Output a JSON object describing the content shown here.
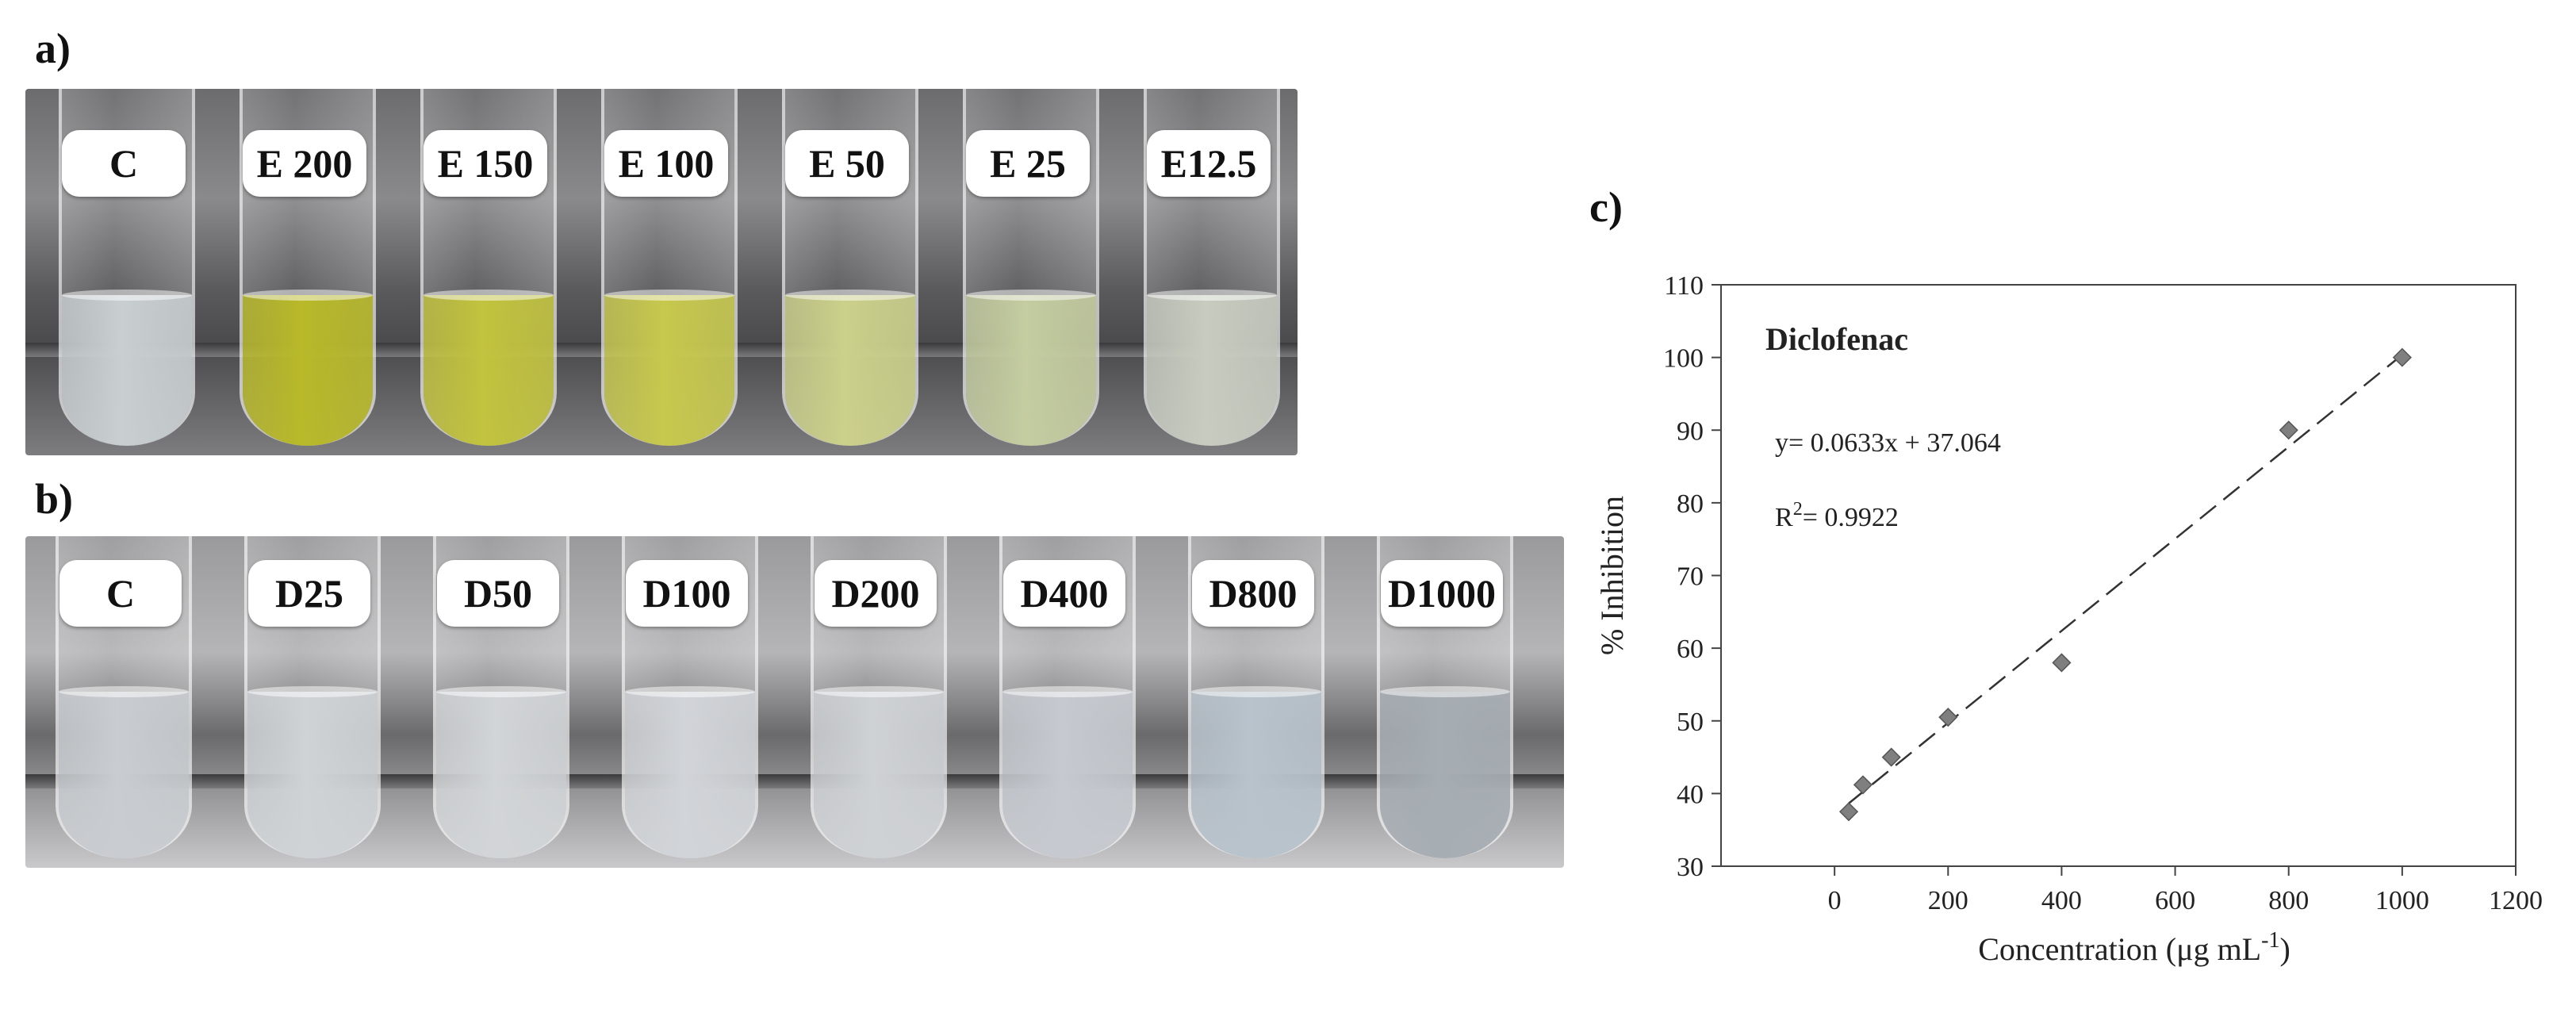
{
  "panels": {
    "a": "a)",
    "b": "b)",
    "c": "c)"
  },
  "photo_a": {
    "labels": [
      "C",
      "E 200",
      "E 150",
      "E 100",
      "E 50",
      "E 25",
      "E12.5"
    ],
    "liquid_colors": [
      "#c9cfd1",
      "#b9b92a",
      "#c2c33e",
      "#c7c84e",
      "#cbd08a",
      "#c4cca0",
      "#c8ccc0"
    ]
  },
  "photo_b": {
    "labels": [
      "C",
      "D25",
      "D50",
      "D100",
      "D200",
      "D400",
      "D800",
      "D1000"
    ],
    "liquid_colors": [
      "#c9cdd1",
      "#cfd3d6",
      "#d2d5d7",
      "#d1d4d8",
      "#cfd2d5",
      "#c6cad0",
      "#b8c3cc",
      "#a6adb3"
    ]
  },
  "chart_data": {
    "type": "scatter",
    "title": "Diclofenac",
    "equation": "y= 0.0633x + 37.064",
    "r2_label": "R",
    "r2_sup": "2",
    "r2_value": "= 0.9922",
    "xlabel_main": "Concentration (μg mL",
    "xlabel_sup": "-1",
    "xlabel_end": ")",
    "ylabel": "% Inhibition",
    "xlim": [
      -200,
      1200
    ],
    "ylim": [
      30,
      110
    ],
    "xticks": [
      0,
      200,
      400,
      600,
      800,
      1000,
      1200
    ],
    "yticks": [
      30,
      40,
      50,
      60,
      70,
      80,
      90,
      100,
      110
    ],
    "x": [
      25,
      50,
      100,
      200,
      400,
      800,
      1000
    ],
    "y": [
      37.5,
      41.2,
      45.0,
      50.5,
      58.0,
      90.0,
      100.0
    ],
    "trendline": {
      "slope": 0.0633,
      "intercept": 37.064,
      "x_range": [
        25,
        1000
      ]
    },
    "marker_color": "#7f7f7f",
    "grid": false
  }
}
